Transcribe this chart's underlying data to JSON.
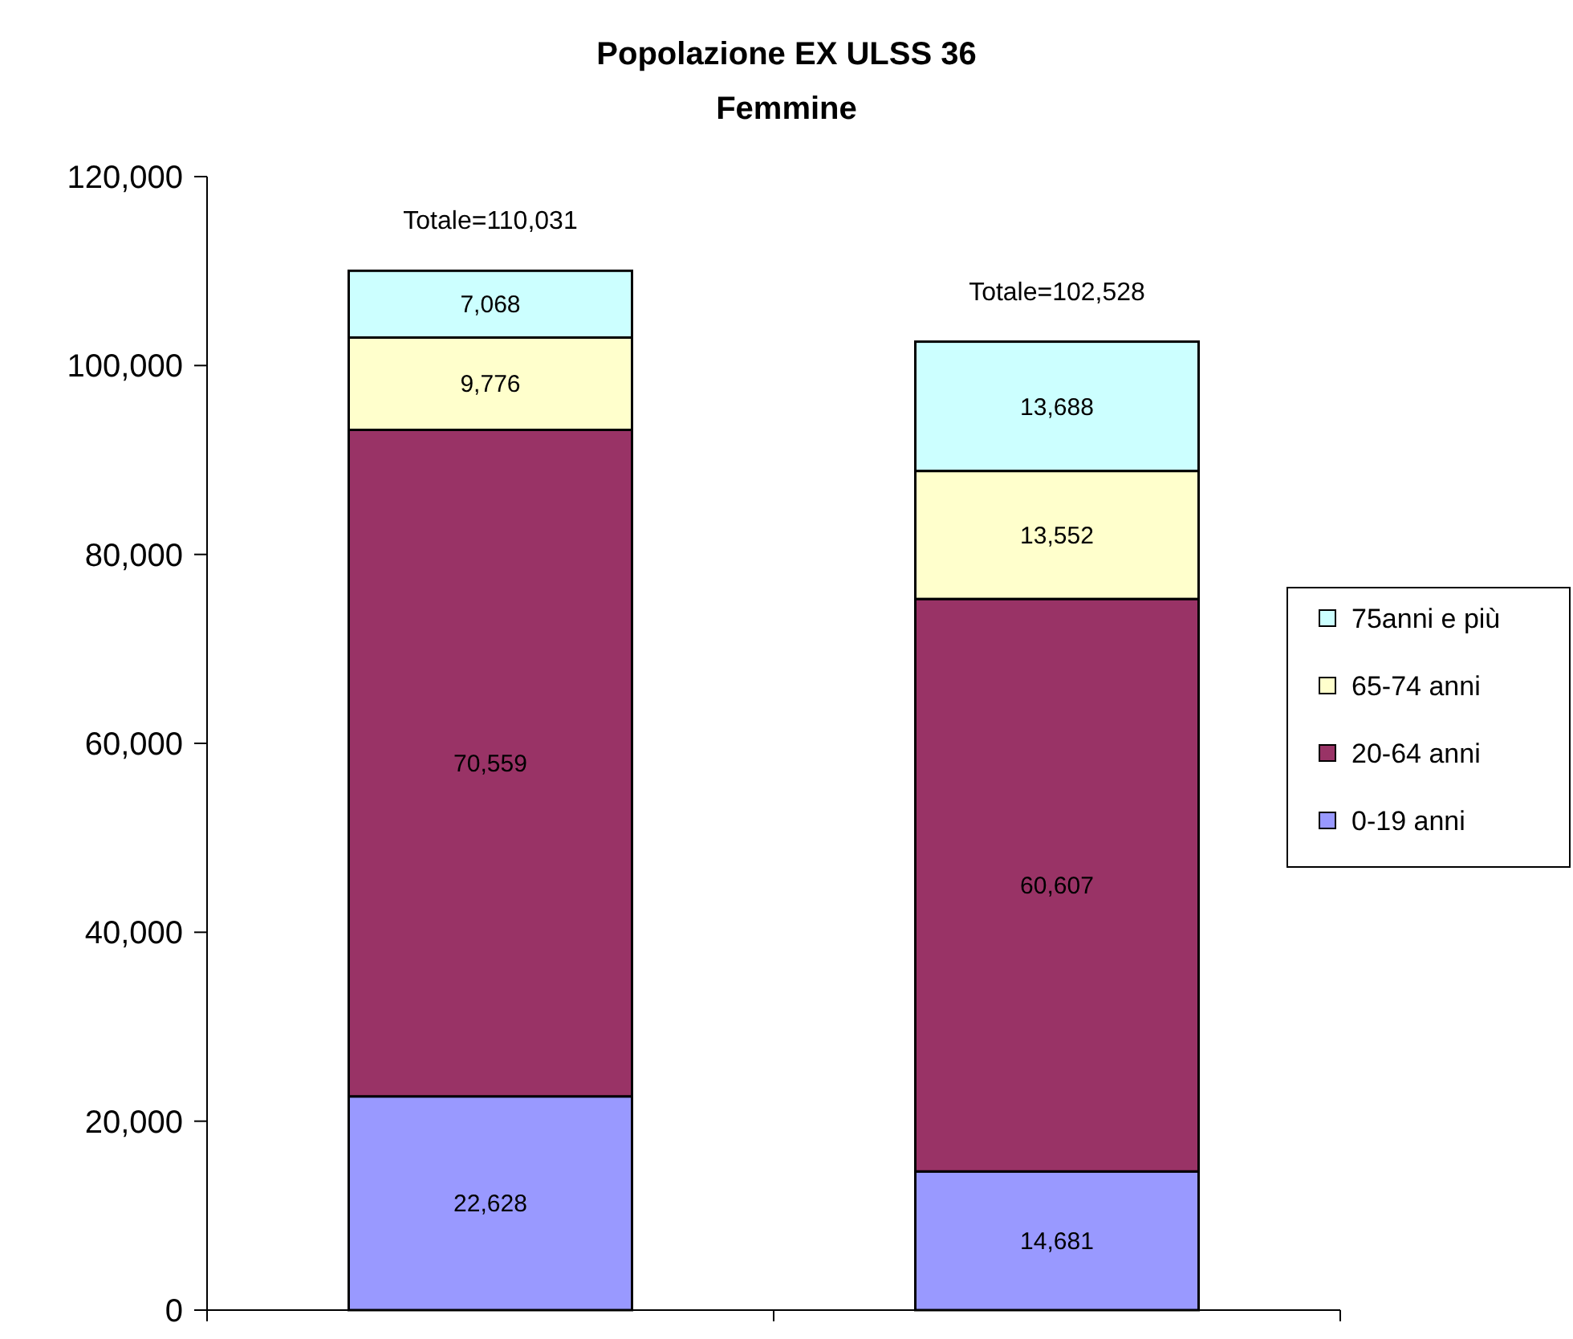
{
  "chart_data": {
    "type": "bar",
    "title": "Popolazione EX ULSS 36",
    "subtitle": "Femmine",
    "categories": [
      null,
      null
    ],
    "stacked": true,
    "series": [
      {
        "name": "0-19 anni",
        "color": "#9999ff",
        "values": [
          22628,
          14681
        ],
        "value_labels": [
          "22,628",
          "14,681"
        ]
      },
      {
        "name": "20-64 anni",
        "color": "#993366",
        "values": [
          70559,
          60607
        ],
        "value_labels": [
          "70,559",
          "60,607"
        ]
      },
      {
        "name": "65-74 anni",
        "color": "#ffffcc",
        "values": [
          9776,
          13552
        ],
        "value_labels": [
          "9,776",
          "13,552"
        ]
      },
      {
        "name": "75anni e più",
        "color": "#ccffff",
        "values": [
          7068,
          13688
        ],
        "value_labels": [
          "7,068",
          "13,688"
        ]
      }
    ],
    "totals": [
      "Totale=110,031",
      "Totale=102,528"
    ],
    "ylim": [
      0,
      120000
    ],
    "yticks": [
      0,
      {
        "value": 20000,
        "label": "20,000"
      },
      {
        "value": 40000,
        "label": "40,000"
      },
      {
        "value": 60000,
        "label": "60,000"
      },
      {
        "value": 80000,
        "label": "80,000"
      },
      {
        "value": 100000,
        "label": "100,000"
      },
      {
        "value": 120000,
        "label": "120,000"
      }
    ],
    "legend": "right"
  }
}
